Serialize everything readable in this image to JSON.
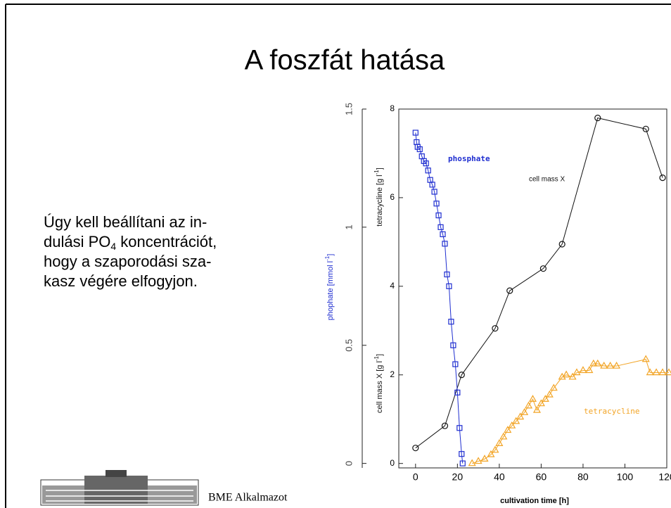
{
  "slide": {
    "title": "A foszfát hatása",
    "body": [
      [
        "Úgy  kell beállítani  az in-"
      ],
      [
        "dulási PO",
        "4",
        " koncentrációt,"
      ],
      [
        "hogy a  szaporodási sza-"
      ],
      [
        "kasz végére elfogyjon."
      ]
    ],
    "footer": "BME Alkalmazot"
  },
  "chart_data": {
    "type": "scatter",
    "xlabel": "cultivation time [h]",
    "ylabel_cell": [
      "cell mass X [g l",
      "-1",
      "]"
    ],
    "ylabel_tc": [
      "tetracycline [g l",
      "-1",
      "]"
    ],
    "y2label": [
      "phophate [mmol l",
      "-1",
      "]"
    ],
    "xlim": [
      -8,
      120
    ],
    "xticks": [
      0,
      20,
      40,
      60,
      80,
      100,
      120
    ],
    "ylim": [
      -0.1,
      8
    ],
    "yticks": [
      0,
      2,
      4,
      6,
      8
    ],
    "y2lim": [
      -0.019,
      1.5
    ],
    "y2ticks": [
      0,
      0.5,
      1,
      1.5
    ],
    "series": [
      {
        "name": "cell mass X",
        "color": "#111111",
        "marker": "circle",
        "x": [
          0,
          14,
          22,
          38,
          45,
          61,
          70,
          87,
          110,
          118
        ],
        "values": [
          0.35,
          0.85,
          2.0,
          3.05,
          3.9,
          4.4,
          4.95,
          7.8,
          7.55,
          6.45
        ]
      },
      {
        "name": "tetracycline",
        "color": "#f2a425",
        "marker": "triangle",
        "x": [
          27,
          30,
          33,
          36,
          38,
          40,
          42,
          44,
          46,
          48,
          50,
          52,
          54,
          56,
          58,
          60,
          62,
          64,
          66,
          70,
          72,
          75,
          77,
          80,
          83,
          85,
          87,
          90,
          93,
          96,
          110,
          112,
          115,
          118,
          121
        ],
        "values": [
          0,
          0.05,
          0.1,
          0.2,
          0.3,
          0.45,
          0.6,
          0.75,
          0.85,
          0.95,
          1.05,
          1.15,
          1.3,
          1.45,
          1.2,
          1.35,
          1.45,
          1.55,
          1.7,
          1.95,
          2.0,
          1.95,
          2.05,
          2.1,
          2.1,
          2.25,
          2.25,
          2.2,
          2.2,
          2.2,
          2.35,
          2.05,
          2.05,
          2.05,
          2.05
        ]
      },
      {
        "name": "phosphate",
        "color": "#1f2ed0",
        "marker": "square",
        "axis": "y2",
        "x": [
          0,
          0.5,
          1,
          2,
          3,
          4,
          5,
          6,
          7,
          8,
          9,
          10,
          11,
          12,
          13,
          14,
          15,
          16,
          17,
          18,
          19,
          20,
          21,
          22,
          22.5
        ],
        "values": [
          1.4,
          1.36,
          1.34,
          1.33,
          1.3,
          1.28,
          1.27,
          1.24,
          1.2,
          1.18,
          1.15,
          1.1,
          1.05,
          1.0,
          0.97,
          0.93,
          0.8,
          0.75,
          0.6,
          0.5,
          0.42,
          0.3,
          0.15,
          0.04,
          0.0
        ]
      }
    ]
  }
}
